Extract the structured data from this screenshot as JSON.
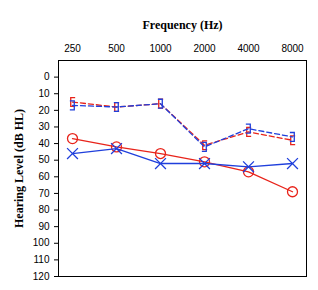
{
  "chart_data": {
    "type": "line",
    "x_label": "Frequency (Hz)",
    "y_label": "Hearing Level (dB HL)",
    "categories": [
      "250",
      "500",
      "1000",
      "2000",
      "4000",
      "8000"
    ],
    "series": [
      {
        "color": "#e8231a",
        "marker": "circle",
        "line_style": "solid",
        "values": [
          37,
          42,
          46,
          51,
          57,
          69
        ]
      },
      {
        "color": "#1f3fdc",
        "marker": "x",
        "line_style": "solid",
        "values": [
          46,
          43,
          52,
          52,
          54,
          52
        ]
      },
      {
        "color": "#e8231a",
        "marker": "bracket-left",
        "line_style": "dashed",
        "values": [
          15,
          18,
          16,
          41,
          33,
          38
        ]
      },
      {
        "color": "#1f3fdc",
        "marker": "bracket-right",
        "line_style": "dashed",
        "values": [
          17,
          18,
          16,
          42,
          31,
          36
        ]
      }
    ],
    "ylim": [
      -10,
      120
    ],
    "yticks": [
      0,
      10,
      20,
      30,
      40,
      50,
      60,
      70,
      80,
      90,
      100,
      110,
      120
    ],
    "grid": false
  }
}
